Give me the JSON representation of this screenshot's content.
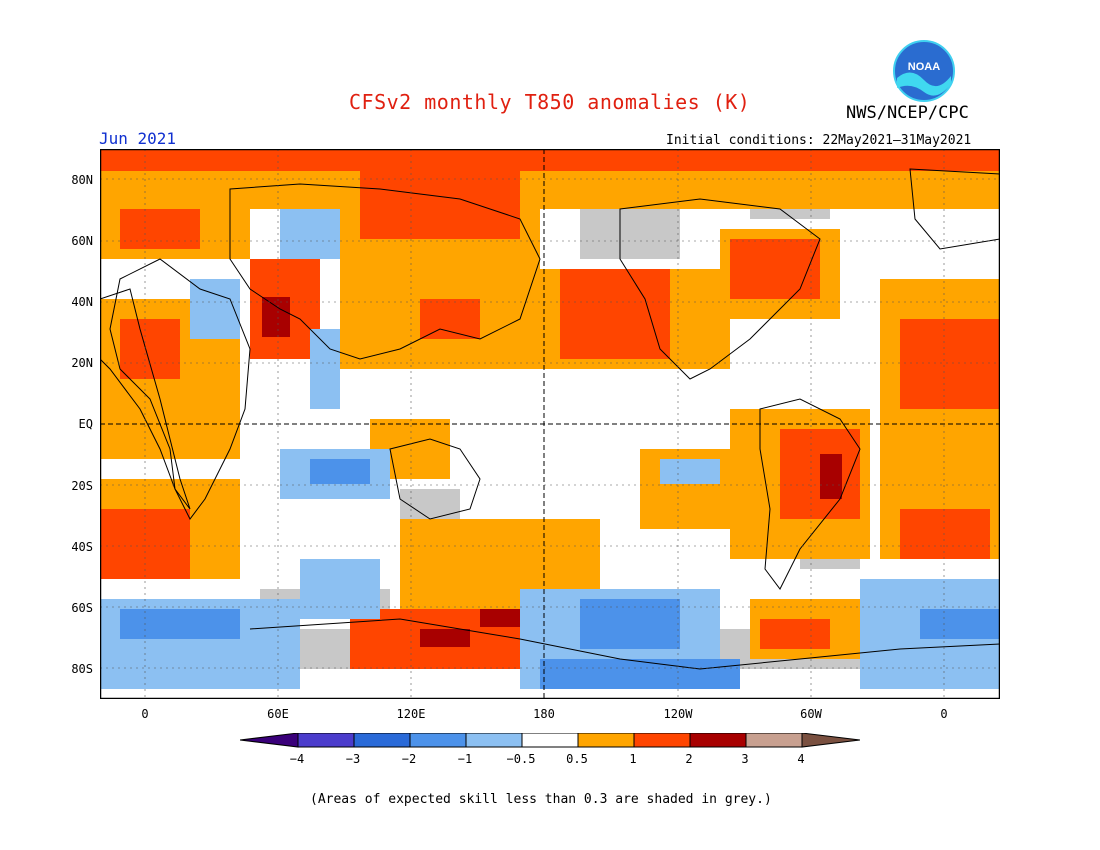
{
  "header": {
    "title": "CFSv2 monthly T850 anomalies (K)",
    "agency": "NWS/NCEP/CPC",
    "period": "Jun 2021",
    "initial_conditions": "Initial conditions: 22May2021–31May2021",
    "logo_text": "NOAA"
  },
  "axes": {
    "lat_labels": [
      "80N",
      "60N",
      "40N",
      "20N",
      "EQ",
      "20S",
      "40S",
      "60S",
      "80S"
    ],
    "lon_labels": [
      "0",
      "60E",
      "120E",
      "180",
      "120W",
      "60W",
      "0"
    ]
  },
  "legend": {
    "labels": [
      "−4",
      "−3",
      "−2",
      "−1",
      "−0.5",
      "0.5",
      "1",
      "2",
      "3",
      "4"
    ],
    "colors": [
      "#3a007a",
      "#4b3ccc",
      "#2a6ad8",
      "#4c92ea",
      "#8cc0f2",
      "#ffffff",
      "#ffa500",
      "#ff4500",
      "#a80000",
      "#c8a090",
      "#7a5040"
    ]
  },
  "footnote": "(Areas of expected skill less than 0.3 are shaded in grey.)",
  "colors": {
    "title": "#e02010",
    "period": "#1030d0",
    "skill_grey": "#c8c8c8",
    "ocean_white": "#ffffff"
  }
}
